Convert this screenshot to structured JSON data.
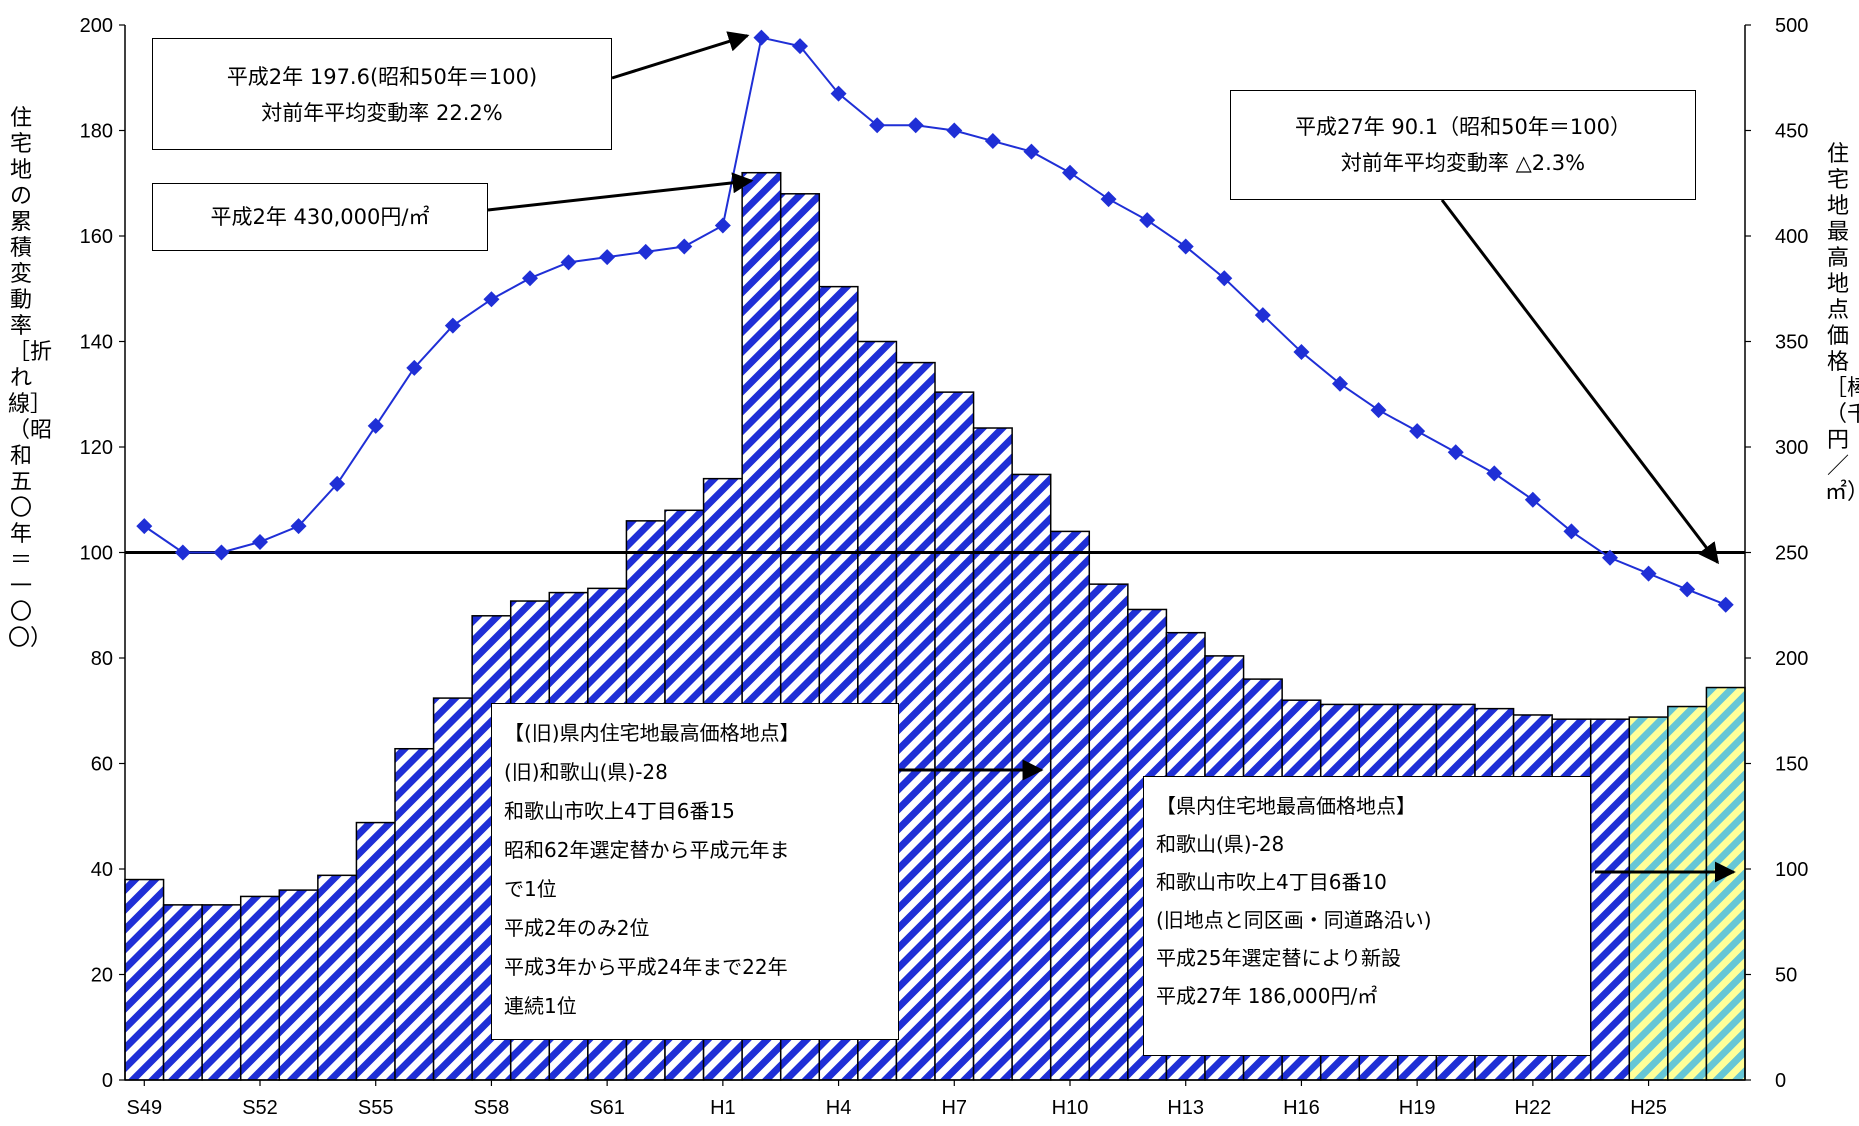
{
  "chart_data": {
    "type": "bar+line",
    "categories": [
      "S49",
      "S50",
      "S51",
      "S52",
      "S53",
      "S54",
      "S55",
      "S56",
      "S57",
      "S58",
      "S59",
      "S60",
      "S61",
      "S62",
      "S63",
      "H1",
      "H2",
      "H3",
      "H4",
      "H5",
      "H6",
      "H7",
      "H8",
      "H9",
      "H10",
      "H11",
      "H12",
      "H13",
      "H14",
      "H15",
      "H16",
      "H17",
      "H18",
      "H19",
      "H20",
      "H21",
      "H22",
      "H23",
      "H24",
      "H25",
      "H26",
      "H27"
    ],
    "x_tick_labels": [
      "S49",
      "S52",
      "S55",
      "S58",
      "S61",
      "H1",
      "H4",
      "H7",
      "H10",
      "H13",
      "H16",
      "H19",
      "H22",
      "H25"
    ],
    "bar_series": {
      "axis": "right",
      "values": [
        95,
        83,
        83,
        87,
        90,
        97,
        122,
        157,
        181,
        220,
        227,
        231,
        233,
        265,
        270,
        285,
        430,
        420,
        376,
        350,
        340,
        326,
        309,
        287,
        260,
        235,
        223,
        212,
        201,
        190,
        180,
        178,
        178,
        178,
        178,
        176,
        173,
        171,
        171,
        172,
        177,
        186
      ],
      "colors_hint": {
        "old_point": "#1f2fd6",
        "new_point": "#66c6d6",
        "new_point_stripe_light": "#ffff99"
      },
      "new_point_start_index": 39
    },
    "line_series": {
      "axis": "left",
      "color": "#1f2fd6",
      "values": [
        105,
        100,
        100,
        102,
        105,
        113,
        124,
        135,
        143,
        148,
        152,
        155,
        156,
        157,
        158,
        162,
        197.6,
        196,
        187,
        181,
        181,
        180,
        178,
        176,
        172,
        167,
        163,
        158,
        152,
        145,
        138,
        132,
        127,
        123,
        119,
        115,
        110,
        104,
        99,
        96,
        93,
        90.1
      ]
    },
    "y_left": {
      "min": 0,
      "max": 200,
      "ticks": [
        0,
        20,
        40,
        60,
        80,
        100,
        120,
        140,
        160,
        180,
        200
      ],
      "label": "住宅地の累積変動率［折れ線］（昭和五〇年＝一〇〇）"
    },
    "y_right": {
      "min": 0,
      "max": 500,
      "ticks": [
        0,
        50,
        100,
        150,
        200,
        250,
        300,
        350,
        400,
        450,
        500
      ],
      "label": "住宅地最高地点価格［棒］（千円／㎡）"
    },
    "reference_line": 100,
    "grid": false,
    "annotations": {
      "peak_index_line": {
        "lines": [
          "平成2年  197.6(昭和50年＝100)",
          "対前年平均変動率  22.2%"
        ]
      },
      "peak_price": {
        "lines": [
          "平成2年  430,000円/㎡"
        ]
      },
      "latest_index": {
        "lines": [
          "平成27年  90.1（昭和50年＝100）",
          "対前年平均変動率  △2.3%"
        ]
      },
      "old_point": {
        "lines": [
          "【(旧)県内住宅地最高価格地点】",
          "(旧)和歌山(県)-28",
          "和歌山市吹上4丁目6番15",
          "昭和62年選定替から平成元年ま",
          "で1位",
          "平成2年のみ2位",
          "平成3年から平成24年まで22年",
          "連続1位"
        ]
      },
      "new_point": {
        "lines": [
          "【県内住宅地最高価格地点】",
          "和歌山(県)-28",
          "和歌山市吹上4丁目6番10",
          "(旧地点と同区画・同道路沿い)",
          "平成25年選定替により新設",
          "平成27年  186,000円/㎡"
        ]
      }
    }
  }
}
